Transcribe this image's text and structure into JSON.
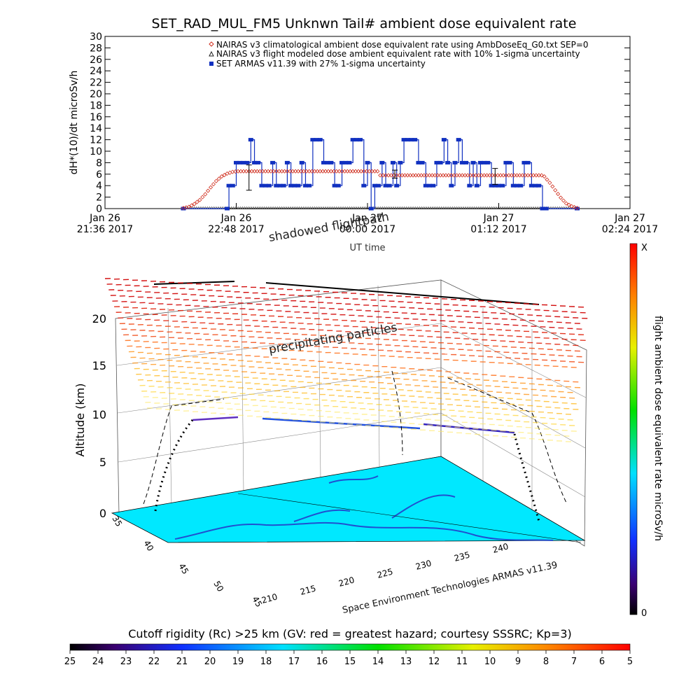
{
  "chart_data": [
    {
      "type": "line",
      "title": "SET_RAD_MUL_FM5 Unknwn Tail#  ambient dose equivalent rate",
      "ylabel": "dH*(10)/dt microSv/h",
      "xlabel": "UT time",
      "ylim": [
        0,
        30
      ],
      "yticks": [
        "0",
        "2",
        "4",
        "6",
        "8",
        "10",
        "12",
        "14",
        "16",
        "18",
        "20",
        "22",
        "24",
        "26",
        "28",
        "30"
      ],
      "xlim_minutes": [
        0,
        288
      ],
      "xticks": [
        {
          "line1": "Jan 26",
          "line2": "21:36 2017"
        },
        {
          "line1": "Jan 26",
          "line2": "22:48 2017"
        },
        {
          "line1": "Jan 27",
          "line2": "00:00 2017"
        },
        {
          "line1": "Jan 27",
          "line2": "01:12 2017"
        },
        {
          "line1": "Jan 27",
          "line2": "02:24 2017"
        }
      ],
      "legend_placement": "top-right",
      "series": [
        {
          "name": "NAIRAS v3 climatological ambient dose equivalent rate using AmbDoseEq_G0.txt SEP=0",
          "color": "#d03020",
          "marker": "diamond",
          "x": [
            43,
            46,
            49,
            52,
            55,
            58,
            61,
            64,
            67,
            70,
            73,
            76,
            79,
            82,
            120,
            150,
            151,
            180,
            210,
            240,
            241,
            244,
            247,
            250,
            253,
            256,
            259
          ],
          "y": [
            0.1,
            0.3,
            0.8,
            1.5,
            2.5,
            3.7,
            4.8,
            5.6,
            6.1,
            6.4,
            6.5,
            6.5,
            6.5,
            6.5,
            6.5,
            6.5,
            5.8,
            5.8,
            5.8,
            5.8,
            5.6,
            4.5,
            3.2,
            1.9,
            0.9,
            0.4,
            0.1
          ]
        },
        {
          "name": "NAIRAS v3 flight modeled dose ambient equivalent rate with 10% 1-sigma uncertainty",
          "color": "#222222",
          "marker": "triangle",
          "x": [
            43,
            259
          ],
          "y": [
            0,
            0
          ]
        },
        {
          "name": "SET ARMAS v11.39 with 27% 1-sigma uncertainty",
          "color": "#1030c0",
          "marker": "square",
          "x": [
            43,
            67,
            68,
            70,
            72,
            74,
            76,
            78,
            80,
            82,
            84,
            86,
            88,
            90,
            92,
            94,
            96,
            98,
            100,
            102,
            104,
            106,
            108,
            110,
            112,
            114,
            116,
            118,
            120,
            122,
            124,
            126,
            128,
            130,
            132,
            134,
            136,
            138,
            140,
            142,
            144,
            146,
            148,
            150,
            152,
            154,
            156,
            158,
            160,
            162,
            164,
            166,
            168,
            170,
            172,
            174,
            176,
            178,
            180,
            182,
            184,
            186,
            188,
            190,
            192,
            194,
            196,
            198,
            200,
            202,
            204,
            206,
            208,
            210,
            212,
            214,
            216,
            218,
            220,
            222,
            224,
            226,
            228,
            230,
            232,
            234,
            236,
            238,
            240,
            242,
            259
          ],
          "y": [
            0,
            0,
            4,
            4,
            8,
            8,
            8,
            8,
            12,
            8,
            8,
            4,
            4,
            4,
            8,
            4,
            4,
            4,
            8,
            4,
            4,
            4,
            8,
            4,
            4,
            12,
            12,
            12,
            8,
            8,
            8,
            4,
            4,
            8,
            8,
            8,
            12,
            12,
            12,
            4,
            8,
            0,
            4,
            4,
            8,
            4,
            4,
            8,
            4,
            8,
            12,
            12,
            12,
            12,
            8,
            8,
            4,
            4,
            4,
            8,
            8,
            12,
            8,
            4,
            8,
            12,
            8,
            8,
            4,
            8,
            4,
            8,
            8,
            8,
            4,
            4,
            4,
            4,
            8,
            8,
            4,
            4,
            4,
            8,
            8,
            4,
            4,
            4,
            0,
            0,
            0
          ]
        }
      ],
      "error_bars": [
        {
          "x": 79,
          "y": 5.8,
          "low": 3.2,
          "high": 7.6
        },
        {
          "x": 159,
          "y": 5.9,
          "low": 5.3,
          "high": 6.7
        },
        {
          "x": 214,
          "y": 5.6,
          "low": 4.2,
          "high": 7.0
        }
      ],
      "annotations": [
        "shadowed flightpath"
      ]
    },
    {
      "type": "other",
      "title": "",
      "zlabel": "Altitude (km)",
      "zlim": [
        0,
        20
      ],
      "zticks": [
        "0",
        "5",
        "10",
        "15",
        "20"
      ],
      "lat_ticks": [
        "35",
        "40",
        "45",
        "50",
        "45"
      ],
      "lon_ticks": [
        "210",
        "215",
        "220",
        "225",
        "230",
        "235",
        "240"
      ],
      "annotations": [
        "precipitating particles",
        "Space Environment Technologies ARMAS v11.39"
      ],
      "flight_path": {
        "x": [
          0,
          20,
          40,
          60,
          80,
          100
        ],
        "altitude_km": [
          0,
          10,
          10,
          10,
          10,
          0
        ]
      }
    }
  ],
  "colorbars": {
    "vertical": {
      "label": "flight ambient dose equivalent rate microSv/h",
      "top_label": "X",
      "bottom_label": "0"
    },
    "horizontal": {
      "title": "Cutoff rigidity (Rc) >25 km (GV: red = greatest hazard; courtesy SSSRC; Kp=3)",
      "ticks": [
        "25",
        "24",
        "23",
        "22",
        "21",
        "20",
        "19",
        "18",
        "17",
        "16",
        "15",
        "14",
        "13",
        "12",
        "11",
        "10",
        "9",
        "8",
        "7",
        "6",
        "5"
      ]
    }
  },
  "colors": {
    "nairas": "#d03020",
    "armas": "#1030c0",
    "ocean": "#00e8ff",
    "land": "#2050d0"
  }
}
